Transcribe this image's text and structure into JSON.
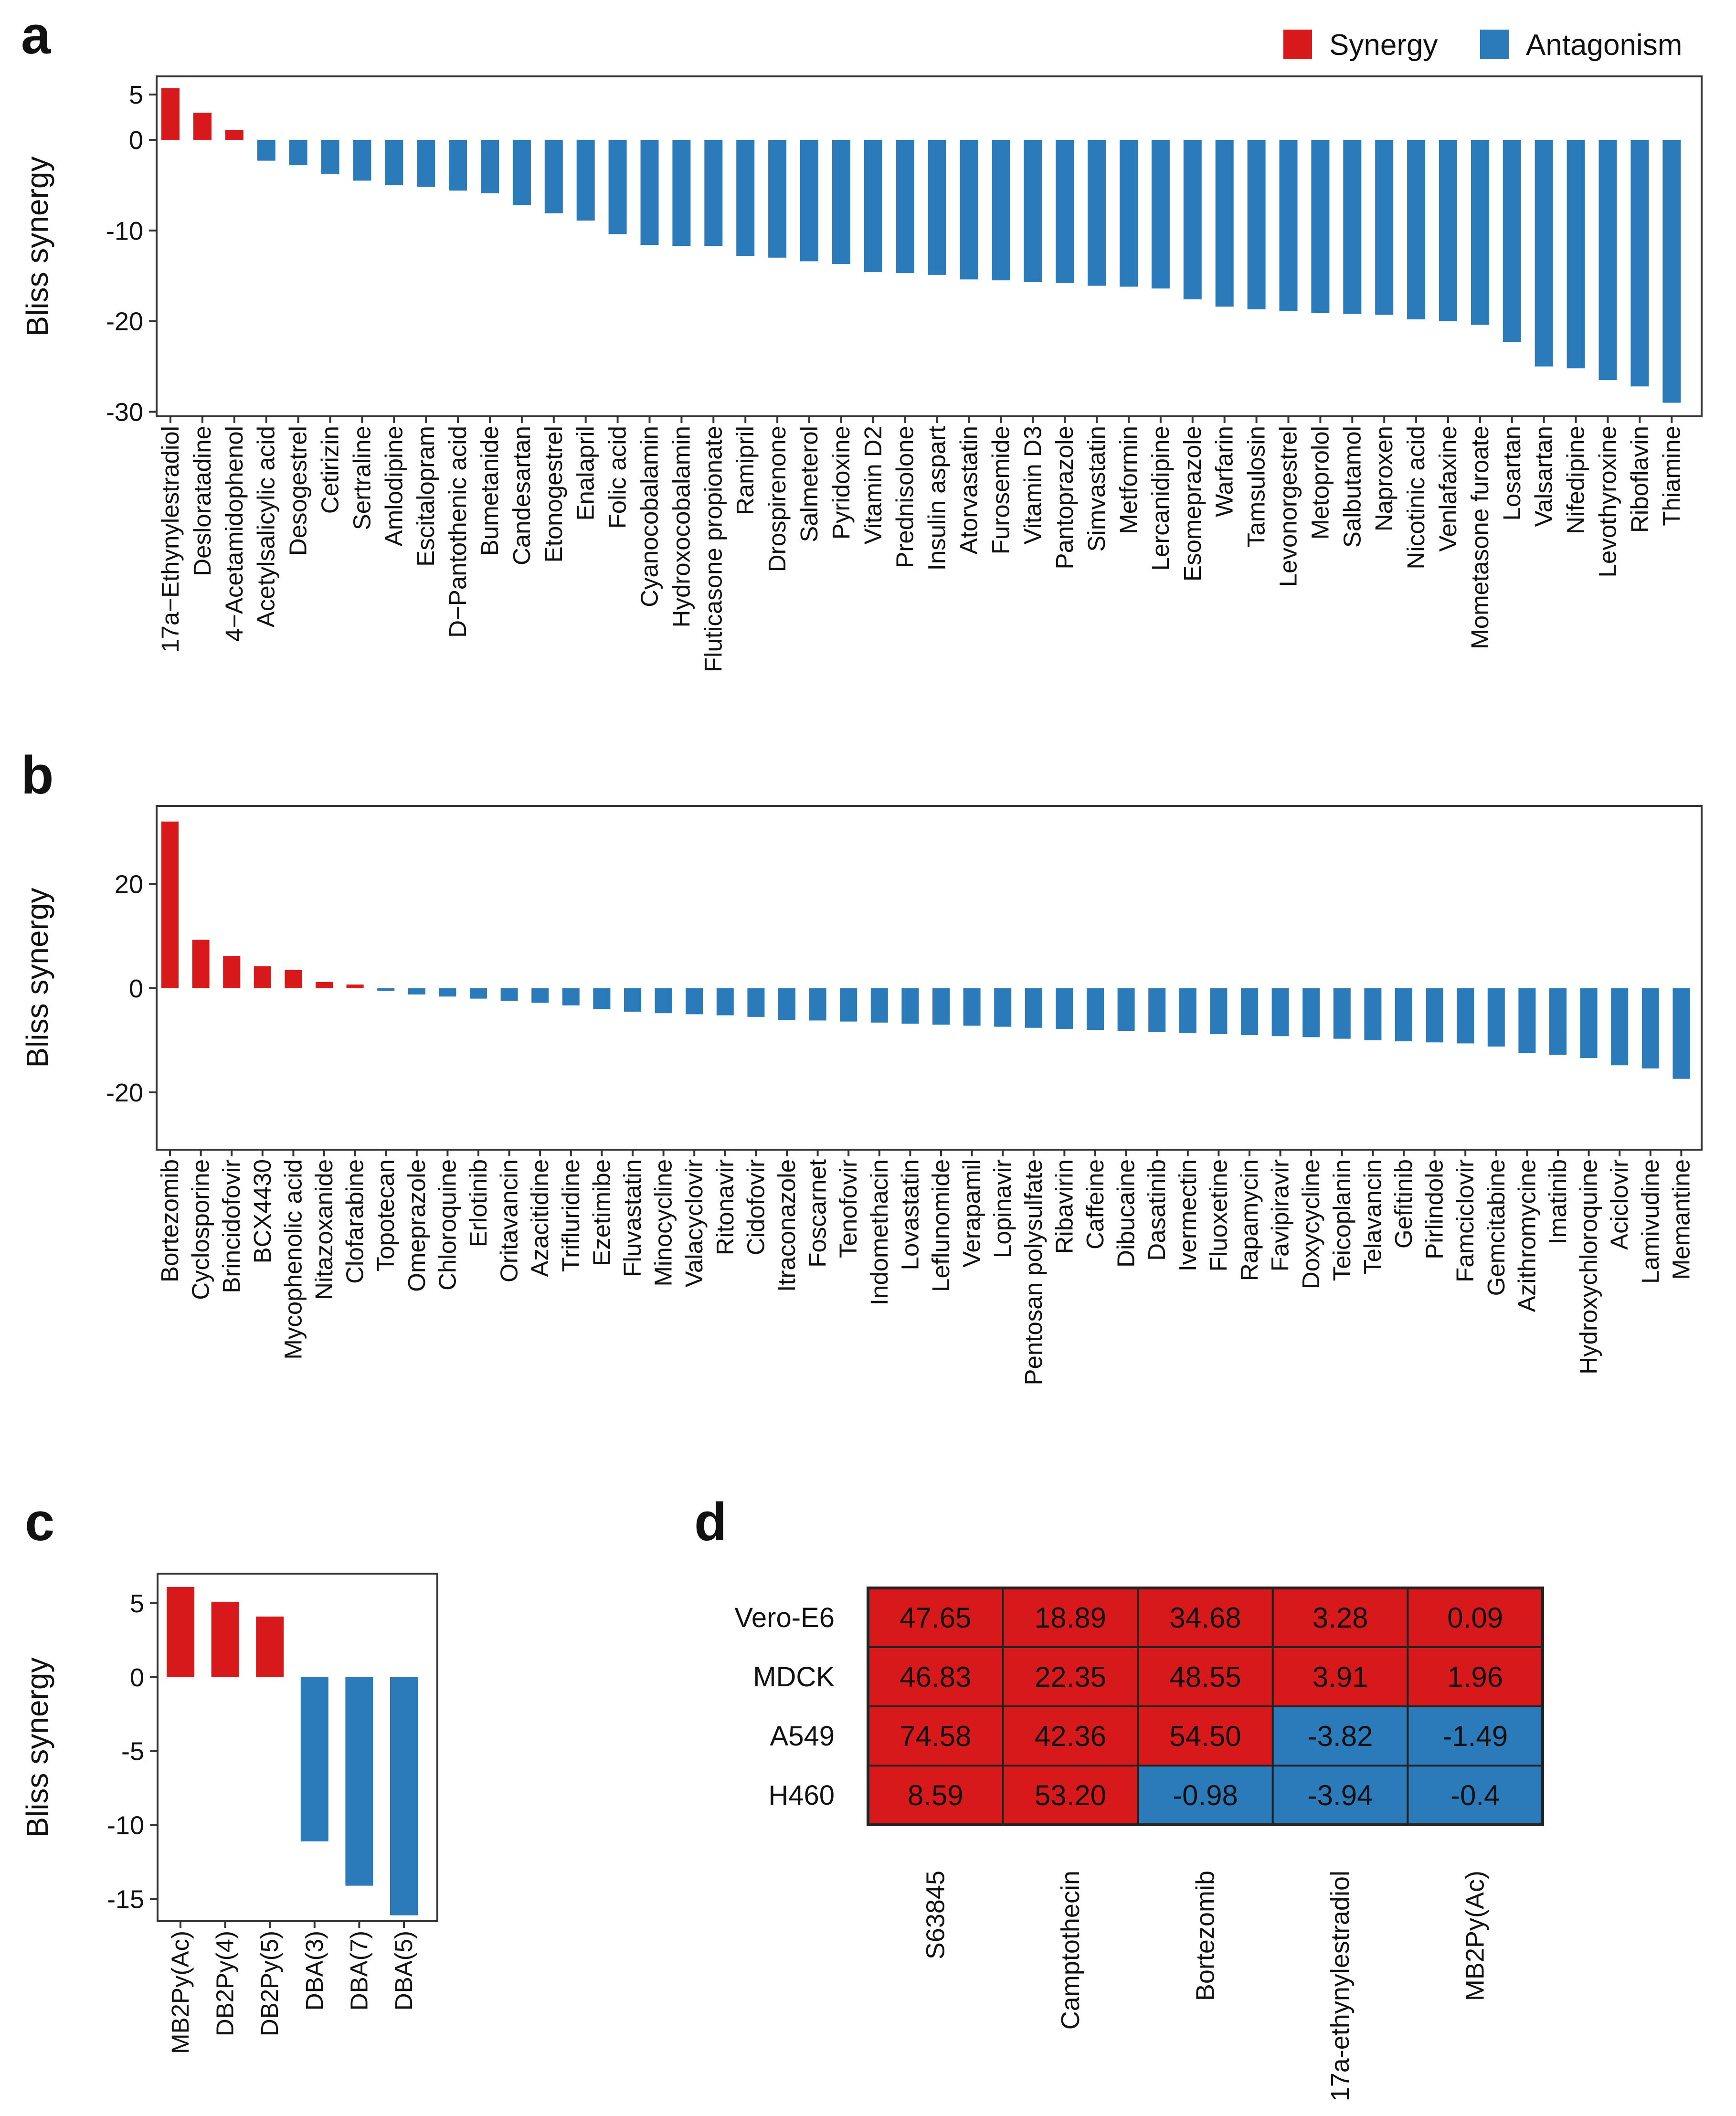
{
  "legend": {
    "items": [
      {
        "label": "Synergy",
        "color": "#d7191c"
      },
      {
        "label": "Antagonism",
        "color": "#2b7bba"
      }
    ]
  },
  "colors": {
    "synergy": "#d7191c",
    "antagonism": "#2b7bba"
  },
  "chart_data": [
    {
      "panel": "a",
      "type": "bar",
      "title": "",
      "xlabel": "",
      "ylabel": "Bliss synergy",
      "ylim": [
        -30.5,
        7
      ],
      "yticks": [
        5,
        0,
        -10,
        -20,
        -30
      ],
      "ytick_labels": [
        "5",
        "0",
        "-10",
        "-20",
        "-30"
      ],
      "grid": false,
      "legend_position": "top-right",
      "categories": [
        "17a−Ethynylestradiol",
        "Desloratadine",
        "4−Acetamidophenol",
        "Acetylsalicylic acid",
        "Desogestrel",
        "Cetirizin",
        "Sertraline",
        "Amlodipine",
        "Escitalopram",
        "D−Pantothenic acid",
        "Bumetanide",
        "Candesartan",
        "Etonogestrel",
        "Enalapril",
        "Folic acid",
        "Cyanocobalamin",
        "Hydroxocobalamin",
        "Fluticasone propionate",
        "Ramipril",
        "Drospirenone",
        "Salmeterol",
        "Pyridoxine",
        "Vitamin D2",
        "Prednisolone",
        "Insulin aspart",
        "Atorvastatin",
        "Furosemide",
        "Vitamin D3",
        "Pantoprazole",
        "Simvastatin",
        "Metformin",
        "Lercanidipine",
        "Esomeprazole",
        "Warfarin",
        "Tamsulosin",
        "Levonorgestrel",
        "Metoprolol",
        "Salbutamol",
        "Naproxen",
        "Nicotinic acid",
        "Venlafaxine",
        "Mometasone furoate",
        "Losartan",
        "Valsartan",
        "Nifedipine",
        "Levothyroxine",
        "Riboflavin",
        "Thiamine"
      ],
      "values": [
        5.7,
        3.0,
        1.1,
        -2.3,
        -2.8,
        -3.8,
        -4.5,
        -5.0,
        -5.2,
        -5.6,
        -5.9,
        -7.2,
        -8.1,
        -8.9,
        -10.4,
        -11.6,
        -11.7,
        -11.7,
        -12.8,
        -13.0,
        -13.4,
        -13.7,
        -14.6,
        -14.7,
        -14.9,
        -15.4,
        -15.5,
        -15.7,
        -15.8,
        -16.1,
        -16.2,
        -16.4,
        -17.6,
        -18.4,
        -18.7,
        -18.9,
        -19.1,
        -19.2,
        -19.3,
        -19.8,
        -20.0,
        -20.4,
        -22.3,
        -25.0,
        -25.2,
        -26.5,
        -27.2,
        -29.0
      ]
    },
    {
      "panel": "b",
      "type": "bar",
      "title": "",
      "xlabel": "",
      "ylabel": "Bliss synergy",
      "ylim": [
        -31,
        35
      ],
      "yticks": [
        20,
        0,
        -20
      ],
      "ytick_labels": [
        "20",
        "0",
        "-20"
      ],
      "grid": false,
      "categories": [
        "Bortezomib",
        "Cyclosporine",
        "Brincidofovir",
        "BCX4430",
        "Mycophenolic acid",
        "Nitazoxanide",
        "Clofarabine",
        "Topotecan",
        "Omeprazole",
        "Chloroquine",
        "Erlotinib",
        "Oritavancin",
        "Azacitidine",
        "Trifluridine",
        "Ezetimibe",
        "Fluvastatin",
        "Minocycline",
        "Valacyclovir",
        "Ritonavir",
        "Cidofovir",
        "Itraconazole",
        "Foscarnet",
        "Tenofovir",
        "Indomethacin",
        "Lovastatin",
        "Leflunomide",
        "Verapamil",
        "Lopinavir",
        "Pentosan polysulfate",
        "Ribavirin",
        "Caffeine",
        "Dibucaine",
        "Dasatinib",
        "Ivermectin",
        "Fluoxetine",
        "Rapamycin",
        "Favipiravir",
        "Doxycycline",
        "Teicoplanin",
        "Telavancin",
        "Gefitinib",
        "Pirlindole",
        "Famciclovir",
        "Gemcitabine",
        "Azithromycine",
        "Imatinib",
        "Hydroxychloroquine",
        "Aciclovir",
        "Lamivudine",
        "Memantine"
      ],
      "values": [
        32.0,
        9.3,
        6.2,
        4.2,
        3.5,
        1.2,
        0.7,
        -0.5,
        -1.2,
        -1.6,
        -2.0,
        -2.4,
        -2.8,
        -3.3,
        -4.0,
        -4.5,
        -4.8,
        -5.0,
        -5.2,
        -5.5,
        -6.1,
        -6.2,
        -6.4,
        -6.6,
        -6.8,
        -7.0,
        -7.2,
        -7.4,
        -7.6,
        -7.8,
        -8.0,
        -8.2,
        -8.4,
        -8.6,
        -8.8,
        -9.0,
        -9.2,
        -9.4,
        -9.7,
        -10.0,
        -10.2,
        -10.4,
        -10.6,
        -11.2,
        -12.4,
        -12.8,
        -13.4,
        -14.8,
        -15.4,
        -17.4
      ]
    },
    {
      "panel": "c",
      "type": "bar",
      "title": "",
      "xlabel": "",
      "ylabel": "Bliss synergy",
      "ylim": [
        -16.5,
        7
      ],
      "yticks": [
        5,
        0,
        -5,
        -10,
        -15
      ],
      "ytick_labels": [
        "5",
        "0",
        "-5",
        "-10",
        "-15"
      ],
      "grid": false,
      "categories": [
        "MB2Py(Ac)",
        "DB2Py(4)",
        "DB2Py(5)",
        "DBA(3)",
        "DBA(7)",
        "DBA(5)"
      ],
      "values": [
        6.1,
        5.1,
        4.1,
        -11.1,
        -14.1,
        -16.1
      ]
    },
    {
      "panel": "d",
      "type": "heatmap",
      "title": "",
      "rows": [
        "Vero-E6",
        "MDCK",
        "A549",
        "H460"
      ],
      "columns": [
        "S63845",
        "Camptothecin",
        "Bortezomib",
        "17a-ethynylestradiol",
        "MB2Py(Ac)"
      ],
      "values": [
        [
          "47.65",
          "18.89",
          "34.68",
          "3.28",
          "0.09"
        ],
        [
          "46.83",
          "22.35",
          "48.55",
          "3.91",
          "1.96"
        ],
        [
          "74.58",
          "42.36",
          "54.50",
          "-3.82",
          "-1.49"
        ],
        [
          "8.59",
          "53.20",
          "-0.98",
          "-3.94",
          "-0.4"
        ]
      ]
    }
  ],
  "panel_labels": [
    "a",
    "b",
    "c",
    "d"
  ]
}
